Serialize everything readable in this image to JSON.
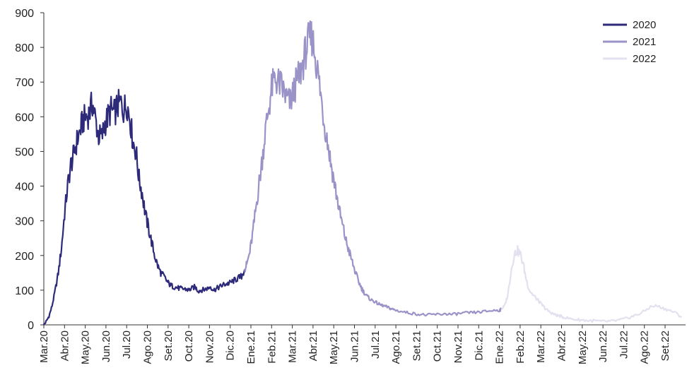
{
  "chart_data": {
    "type": "line",
    "title": "",
    "xlabel": "",
    "ylabel": "",
    "ylim": [
      0,
      900
    ],
    "yticks": [
      0,
      100,
      200,
      300,
      400,
      500,
      600,
      700,
      800,
      900
    ],
    "grid": false,
    "legend_position": "top-right",
    "x_tick_labels": [
      "Mar.20",
      "Abr.20",
      "May.20",
      "Jun.20",
      "Jul.20",
      "Ago.20",
      "Set.20",
      "Oct.20",
      "Nov.20",
      "Dic.20",
      "Ene.21",
      "Feb.21",
      "Mar.21",
      "Abr.21",
      "May.21",
      "Jun.21",
      "Jul.21",
      "Ago.21",
      "Set.21",
      "Oct.21",
      "Nov.21",
      "Dic.21",
      "Ene.22",
      "Feb.22",
      "Mar.22",
      "Abr.22",
      "May.22",
      "Jun.22",
      "Jul.22",
      "Ago.22",
      "Set.22"
    ],
    "x_unit": "month index, 0 = Mar.20",
    "series": [
      {
        "name": "2020",
        "color": "#2e2a7a",
        "x": [
          0,
          0.1,
          0.25,
          0.4,
          0.55,
          0.7,
          0.85,
          1.0,
          1.15,
          1.3,
          1.45,
          1.6,
          1.75,
          1.9,
          2.05,
          2.2,
          2.35,
          2.5,
          2.65,
          2.8,
          2.95,
          3.1,
          3.25,
          3.4,
          3.55,
          3.7,
          3.85,
          4.0,
          4.15,
          4.3,
          4.45,
          4.6,
          4.75,
          4.9,
          5.05,
          5.2,
          5.35,
          5.5,
          5.65,
          5.8,
          5.95,
          6.1,
          6.25,
          6.4,
          6.55,
          6.7,
          6.85,
          7.0,
          7.15,
          7.3,
          7.45,
          7.6,
          7.75,
          7.9,
          8.05,
          8.2,
          8.35,
          8.5,
          8.65,
          8.8,
          8.95,
          9.1,
          9.25,
          9.4,
          9.55,
          9.7
        ],
        "y": [
          0,
          8,
          25,
          55,
          100,
          150,
          220,
          320,
          400,
          460,
          490,
          530,
          560,
          590,
          600,
          610,
          640,
          590,
          545,
          540,
          580,
          600,
          620,
          610,
          630,
          640,
          620,
          640,
          600,
          530,
          500,
          420,
          380,
          320,
          280,
          240,
          200,
          170,
          150,
          140,
          125,
          115,
          110,
          108,
          105,
          104,
          103,
          100,
          105,
          110,
          98,
          100,
          102,
          105,
          110,
          100,
          105,
          110,
          115,
          118,
          120,
          125,
          130,
          135,
          140,
          160
        ]
      },
      {
        "name": "2021",
        "color": "#9993c7",
        "x": [
          9.7,
          9.8,
          9.95,
          10.1,
          10.25,
          10.4,
          10.55,
          10.7,
          10.85,
          11.0,
          11.15,
          11.3,
          11.45,
          11.6,
          11.75,
          11.9,
          12.05,
          12.2,
          12.35,
          12.5,
          12.65,
          12.8,
          12.95,
          13.1,
          13.25,
          13.4,
          13.55,
          13.7,
          13.85,
          14.0,
          14.15,
          14.3,
          14.45,
          14.6,
          14.75,
          14.9,
          15.05,
          15.2,
          15.35,
          15.5,
          15.65,
          15.8,
          15.95,
          16.1,
          16.25,
          16.4,
          16.55,
          16.7,
          16.85,
          17.0,
          17.3,
          17.6,
          17.9,
          18.2,
          18.5,
          18.8,
          19.1,
          19.4,
          19.7,
          20.0,
          20.3,
          20.6,
          20.9,
          21.2,
          21.5,
          21.8,
          22.0,
          22.1
        ],
        "y": [
          160,
          175,
          210,
          270,
          340,
          410,
          480,
          560,
          620,
          680,
          710,
          700,
          690,
          670,
          650,
          640,
          670,
          700,
          720,
          750,
          790,
          820,
          830,
          780,
          720,
          650,
          580,
          530,
          470,
          420,
          370,
          320,
          280,
          240,
          210,
          180,
          150,
          125,
          105,
          90,
          80,
          72,
          68,
          62,
          58,
          55,
          52,
          48,
          45,
          42,
          38,
          35,
          32,
          30,
          28,
          30,
          30,
          32,
          30,
          32,
          34,
          35,
          36,
          38,
          40,
          42,
          42,
          45
        ]
      },
      {
        "name": "2022",
        "color": "#e3e0ef",
        "x": [
          22.1,
          22.25,
          22.4,
          22.55,
          22.7,
          22.85,
          23.0,
          23.15,
          23.3,
          23.45,
          23.6,
          23.75,
          23.9,
          24.05,
          24.2,
          24.35,
          24.5,
          24.65,
          24.8,
          24.95,
          25.1,
          25.4,
          25.7,
          26.0,
          26.3,
          26.6,
          26.9,
          27.2,
          27.5,
          27.8,
          28.1,
          28.4,
          28.7,
          29.0,
          29.3,
          29.6,
          29.9,
          30.2,
          30.5,
          30.8
        ],
        "y": [
          45,
          55,
          85,
          150,
          200,
          215,
          205,
          175,
          130,
          100,
          88,
          78,
          68,
          58,
          48,
          40,
          35,
          30,
          27,
          25,
          22,
          18,
          15,
          14,
          12,
          12,
          10,
          10,
          11,
          14,
          18,
          24,
          30,
          40,
          52,
          55,
          48,
          42,
          35,
          22
        ]
      }
    ]
  }
}
